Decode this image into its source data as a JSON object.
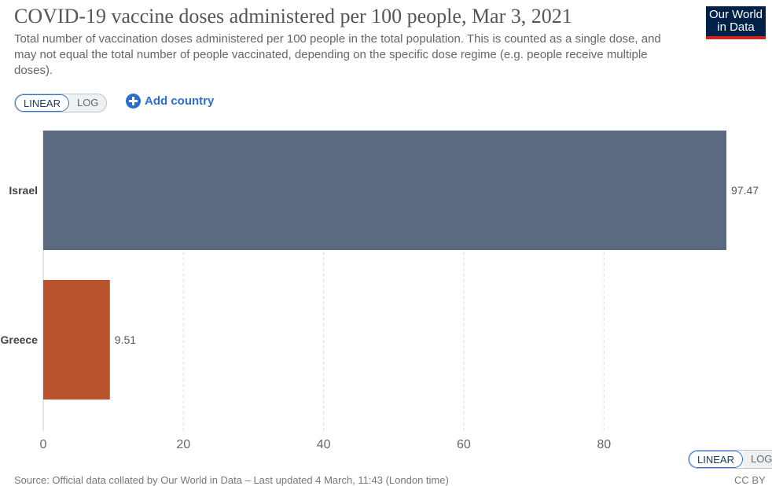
{
  "header": {
    "title": "COVID-19 vaccine doses administered per 100 people, Mar 3, 2021",
    "subtitle": "Total number of vaccination doses administered per 100 people in the total population. This is counted as a single dose, and may not equal the total number of people vaccinated, depending on the specific dose regime (e.g. people receive multiple doses).",
    "logo_line1": "Our World",
    "logo_line2": "in Data"
  },
  "controls": {
    "linear_label": "LINEAR",
    "log_label": "LOG",
    "add_country_label": "Add country",
    "selected_scale": "LINEAR"
  },
  "footer": {
    "source": "Source: Official data collated by Our World in Data – Last updated 4 March, 11:43 (London time)",
    "license": "CC BY"
  },
  "chart_data": {
    "type": "bar",
    "orientation": "horizontal",
    "categories": [
      "Israel",
      "Greece"
    ],
    "values": [
      97.47,
      9.51
    ],
    "value_labels": [
      "97.47",
      "9.51"
    ],
    "colors": [
      "#5b6a80",
      "#b9532b"
    ],
    "xticks": [
      0,
      20,
      40,
      60,
      80
    ],
    "xlim": [
      0,
      97.47
    ],
    "grid": "vertical dashed",
    "title": "COVID-19 vaccine doses administered per 100 people, Mar 3, 2021",
    "xlabel": "",
    "ylabel": ""
  }
}
